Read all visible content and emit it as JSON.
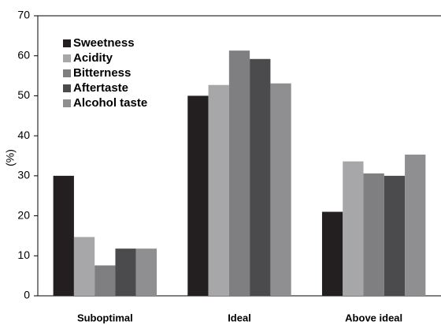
{
  "chart_data": {
    "type": "bar",
    "y_label": "(%)",
    "categories": [
      "Suboptimal",
      "Ideal",
      "Above ideal"
    ],
    "series": [
      {
        "name": "Sweetness",
        "color": "#231f20",
        "values": [
          30,
          50,
          21
        ]
      },
      {
        "name": "Acidity",
        "color": "#a7a7a9",
        "values": [
          14.7,
          52.7,
          33.6
        ]
      },
      {
        "name": "Bitterness",
        "color": "#7f7f82",
        "values": [
          7.6,
          61.3,
          30.6
        ]
      },
      {
        "name": "Aftertaste",
        "color": "#4b4b4e",
        "values": [
          11.8,
          59.2,
          30
        ]
      },
      {
        "name": "Alcohol taste",
        "color": "#8f8f92",
        "values": [
          11.8,
          53.1,
          35.3
        ]
      }
    ],
    "ylim": [
      0,
      70
    ],
    "yticks": [
      0,
      10,
      20,
      30,
      40,
      50,
      60,
      70
    ],
    "legend": "top-left"
  }
}
